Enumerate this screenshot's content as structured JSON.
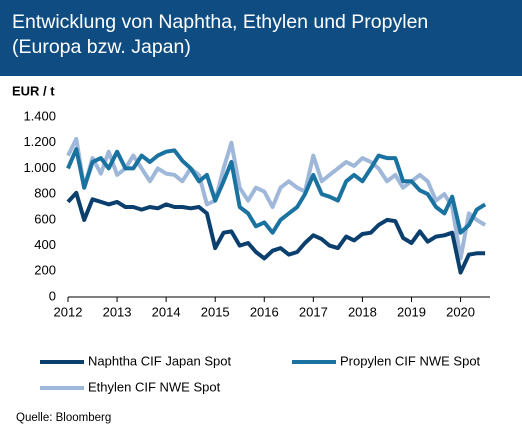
{
  "chart_data": {
    "type": "line",
    "title": "Entwicklung von Naphtha, Ethylen und Propylen (Europa bzw. Japan)",
    "y_label": "EUR / t",
    "source": "Quelle: Bloomberg",
    "x": [
      2012,
      2012.17,
      2012.33,
      2012.5,
      2012.67,
      2012.83,
      2013,
      2013.17,
      2013.33,
      2013.5,
      2013.67,
      2013.83,
      2014,
      2014.17,
      2014.33,
      2014.5,
      2014.67,
      2014.83,
      2015,
      2015.17,
      2015.33,
      2015.5,
      2015.67,
      2015.83,
      2016,
      2016.17,
      2016.33,
      2016.5,
      2016.67,
      2016.83,
      2017,
      2017.17,
      2017.33,
      2017.5,
      2017.67,
      2017.83,
      2018,
      2018.17,
      2018.33,
      2018.5,
      2018.67,
      2018.83,
      2019,
      2019.17,
      2019.33,
      2019.5,
      2019.67,
      2019.83,
      2020,
      2020.17,
      2020.33,
      2020.5
    ],
    "series": [
      {
        "name": "Naphtha CIF Japan Spot",
        "color": "#0b3f6e",
        "values": [
          740,
          810,
          600,
          760,
          740,
          720,
          740,
          700,
          700,
          680,
          700,
          690,
          720,
          700,
          700,
          690,
          700,
          650,
          380,
          500,
          510,
          400,
          420,
          350,
          300,
          360,
          380,
          330,
          350,
          420,
          480,
          450,
          400,
          380,
          470,
          440,
          490,
          500,
          560,
          600,
          590,
          460,
          420,
          510,
          430,
          470,
          480,
          500,
          190,
          330,
          340,
          340
        ]
      },
      {
        "name": "Propylen CIF NWE Spot",
        "color": "#1a72a0",
        "values": [
          1000,
          1150,
          850,
          1050,
          1080,
          1000,
          1130,
          1000,
          1000,
          1100,
          1050,
          1100,
          1130,
          1140,
          1060,
          1000,
          900,
          950,
          750,
          900,
          1050,
          700,
          650,
          550,
          580,
          500,
          600,
          650,
          700,
          800,
          950,
          800,
          780,
          750,
          900,
          950,
          900,
          1000,
          1100,
          1080,
          1080,
          900,
          900,
          830,
          800,
          700,
          650,
          780,
          500,
          560,
          680,
          720
        ]
      },
      {
        "name": "Ethylen CIF NWE Spot",
        "color": "#9fb8d9",
        "values": [
          1100,
          1230,
          850,
          1080,
          960,
          1130,
          950,
          1000,
          1100,
          1000,
          900,
          1000,
          960,
          950,
          900,
          1000,
          950,
          720,
          750,
          1000,
          1200,
          850,
          750,
          850,
          820,
          700,
          850,
          900,
          850,
          820,
          1100,
          900,
          950,
          1000,
          1050,
          1020,
          1080,
          1050,
          1000,
          900,
          950,
          850,
          900,
          950,
          900,
          750,
          800,
          700,
          300,
          650,
          600,
          560
        ]
      }
    ],
    "xlim": [
      2012,
      2020.6
    ],
    "xticks": [
      2012,
      2013,
      2014,
      2015,
      2016,
      2017,
      2018,
      2019,
      2020
    ],
    "ylim": [
      0,
      1400
    ],
    "yticks": [
      0,
      200,
      400,
      600,
      800,
      {
        "value": 1000,
        "label": "1.000"
      },
      {
        "value": 1200,
        "label": "1.200"
      },
      {
        "value": 1400,
        "label": "1.400"
      }
    ],
    "grid": false
  }
}
